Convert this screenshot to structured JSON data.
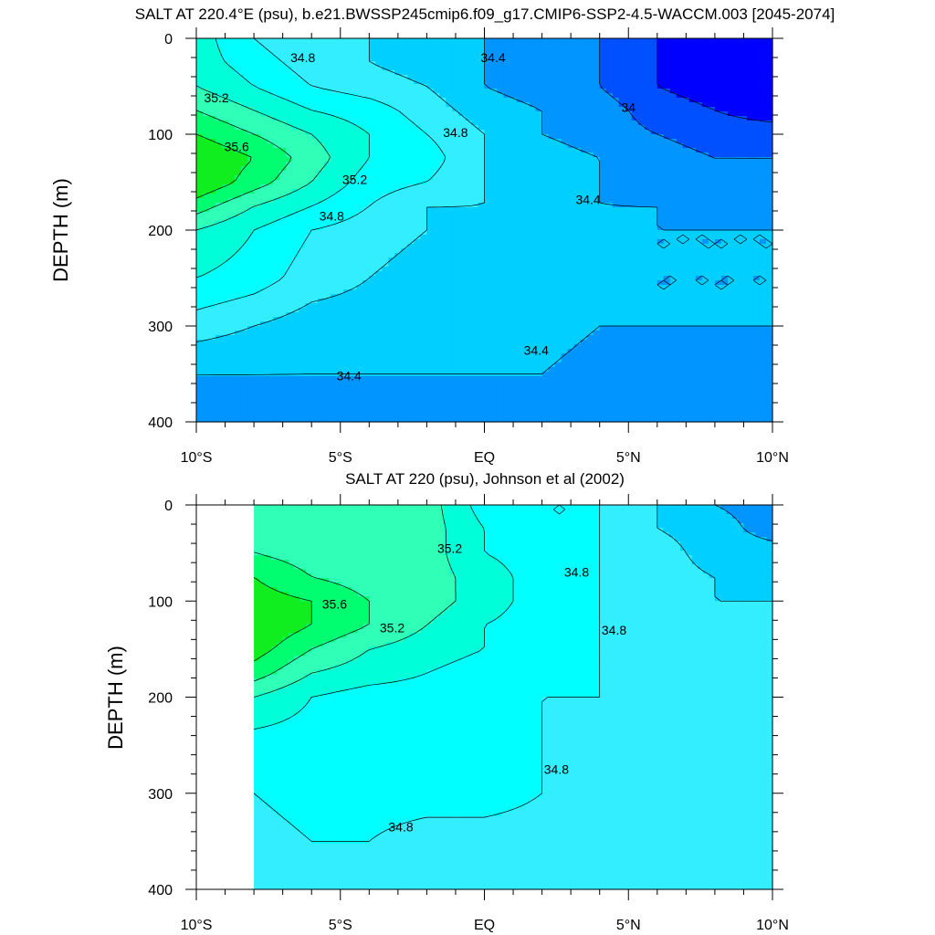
{
  "chart_data": [
    {
      "type": "heatmap",
      "title": "SALT AT 220.4°E (psu), b.e21.BWSSP245cmip6.f09_g17.CMIP6-SSP2-4.5-WACCM.003 [2045-2074]",
      "ylabel": "DEPTH (m)",
      "xlabel": "",
      "xlim": [
        -10,
        10
      ],
      "ylim": [
        400,
        0
      ],
      "x_ticks": [
        -10,
        -5,
        0,
        5,
        10
      ],
      "x_tick_labels": [
        "10°S",
        "5°S",
        "EQ",
        "5°N",
        "10°N"
      ],
      "y_ticks": [
        0,
        100,
        200,
        300,
        400
      ],
      "y_tick_labels": [
        "0",
        "100",
        "200",
        "300",
        "400"
      ],
      "contour_interval": 0.2,
      "contour_labels": [
        {
          "text": "34.8",
          "lat": -6.3,
          "depth": 20
        },
        {
          "text": "34.4",
          "lat": 0.3,
          "depth": 20
        },
        {
          "text": "35.2",
          "lat": -9.3,
          "depth": 62
        },
        {
          "text": "34.8",
          "lat": -1.0,
          "depth": 98
        },
        {
          "text": "34",
          "lat": 5.0,
          "depth": 72
        },
        {
          "text": "35.6",
          "lat": -8.6,
          "depth": 113
        },
        {
          "text": "35.2",
          "lat": -4.5,
          "depth": 147
        },
        {
          "text": "34.8",
          "lat": -5.3,
          "depth": 185
        },
        {
          "text": "34.4",
          "lat": 3.6,
          "depth": 168
        },
        {
          "text": "34.4",
          "lat": 1.8,
          "depth": 325
        },
        {
          "text": "34.4",
          "lat": -4.7,
          "depth": 352
        }
      ],
      "data_extent": {
        "lat": [
          -10,
          10
        ],
        "depth": [
          0,
          400
        ]
      },
      "salinity_field": {
        "lat": [
          -10,
          -8,
          -6,
          -4,
          -2,
          0,
          2,
          4,
          6,
          8,
          10
        ],
        "depth": [
          0,
          25,
          50,
          75,
          100,
          125,
          150,
          175,
          200,
          250,
          300,
          350,
          400
        ],
        "values": [
          [
            35.1,
            34.8,
            34.6,
            34.6,
            34.5,
            34.4,
            34.3,
            34.2,
            34.0,
            33.7,
            33.6
          ],
          [
            35.1,
            34.9,
            34.7,
            34.6,
            34.5,
            34.4,
            34.3,
            34.2,
            34.0,
            33.8,
            33.7
          ],
          [
            35.2,
            35.0,
            34.8,
            34.7,
            34.6,
            34.4,
            34.3,
            34.2,
            34.0,
            33.9,
            33.8
          ],
          [
            35.4,
            35.2,
            35.0,
            34.9,
            34.7,
            34.5,
            34.4,
            34.3,
            34.1,
            34.0,
            33.9
          ],
          [
            35.6,
            35.4,
            35.2,
            35.0,
            34.8,
            34.6,
            34.4,
            34.3,
            34.2,
            34.1,
            34.1
          ],
          [
            35.8,
            35.6,
            35.3,
            35.0,
            34.9,
            34.6,
            34.5,
            34.4,
            34.3,
            34.2,
            34.2
          ],
          [
            35.8,
            35.5,
            35.2,
            34.9,
            34.8,
            34.6,
            34.5,
            34.4,
            34.3,
            34.3,
            34.3
          ],
          [
            35.5,
            35.2,
            35.0,
            34.8,
            34.6,
            34.6,
            34.5,
            34.4,
            34.4,
            34.3,
            34.3
          ],
          [
            35.2,
            35.0,
            34.8,
            34.7,
            34.6,
            34.5,
            34.5,
            34.5,
            34.4,
            34.4,
            34.4
          ],
          [
            35.0,
            34.9,
            34.7,
            34.6,
            34.5,
            34.5,
            34.5,
            34.5,
            34.4,
            34.4,
            34.4
          ],
          [
            34.7,
            34.6,
            34.5,
            34.5,
            34.5,
            34.5,
            34.5,
            34.4,
            34.4,
            34.4,
            34.4
          ],
          [
            34.4,
            34.4,
            34.4,
            34.4,
            34.4,
            34.4,
            34.4,
            34.3,
            34.3,
            34.3,
            34.3
          ],
          [
            34.3,
            34.3,
            34.3,
            34.3,
            34.3,
            34.3,
            34.3,
            34.3,
            34.3,
            34.3,
            34.3
          ]
        ]
      }
    },
    {
      "type": "heatmap",
      "title": "SALT AT 220 (psu), Johnson et al (2002)",
      "ylabel": "DEPTH (m)",
      "xlabel": "",
      "xlim": [
        -10,
        10
      ],
      "ylim": [
        400,
        0
      ],
      "x_ticks": [
        -10,
        -5,
        0,
        5,
        10
      ],
      "x_tick_labels": [
        "10°S",
        "5°S",
        "EQ",
        "5°N",
        "10°N"
      ],
      "y_ticks": [
        0,
        100,
        200,
        300,
        400
      ],
      "y_tick_labels": [
        "0",
        "100",
        "200",
        "300",
        "400"
      ],
      "contour_interval": 0.2,
      "contour_labels": [
        {
          "text": "35.2",
          "lat": -1.2,
          "depth": 45
        },
        {
          "text": "34.8",
          "lat": 3.2,
          "depth": 70
        },
        {
          "text": "35.6",
          "lat": -5.2,
          "depth": 103
        },
        {
          "text": "35.2",
          "lat": -3.2,
          "depth": 128
        },
        {
          "text": "34.8",
          "lat": 4.5,
          "depth": 130
        },
        {
          "text": "34.8",
          "lat": 2.5,
          "depth": 275
        },
        {
          "text": "34.8",
          "lat": -2.9,
          "depth": 335
        }
      ],
      "data_extent": {
        "lat": [
          -8,
          10
        ],
        "depth": [
          0,
          400
        ]
      },
      "salinity_field": {
        "lat": [
          -8,
          -6,
          -4,
          -2,
          0,
          2,
          4,
          6,
          8,
          10
        ],
        "depth": [
          0,
          25,
          50,
          75,
          100,
          125,
          150,
          175,
          200,
          250,
          300,
          350,
          400
        ],
        "values": [
          [
            35.3,
            35.3,
            35.3,
            35.3,
            34.9,
            34.8,
            34.8,
            34.6,
            34.4,
            34.3
          ],
          [
            35.3,
            35.3,
            35.3,
            35.3,
            35.0,
            34.8,
            34.8,
            34.6,
            34.5,
            34.3
          ],
          [
            35.4,
            35.3,
            35.3,
            35.3,
            35.0,
            34.9,
            34.8,
            34.7,
            34.5,
            34.5
          ],
          [
            35.6,
            35.4,
            35.3,
            35.3,
            35.1,
            34.9,
            34.8,
            34.7,
            34.6,
            34.5
          ],
          [
            35.7,
            35.6,
            35.4,
            35.3,
            35.1,
            34.9,
            34.8,
            34.7,
            34.6,
            34.6
          ],
          [
            35.8,
            35.6,
            35.4,
            35.2,
            35.0,
            34.9,
            34.8,
            34.7,
            34.7,
            34.6
          ],
          [
            35.7,
            35.4,
            35.2,
            35.1,
            35.0,
            34.9,
            34.8,
            34.7,
            34.7,
            34.7
          ],
          [
            35.5,
            35.2,
            35.1,
            35.0,
            34.9,
            34.9,
            34.8,
            34.7,
            34.7,
            34.7
          ],
          [
            35.2,
            35.0,
            34.9,
            34.9,
            34.9,
            34.8,
            34.8,
            34.7,
            34.7,
            34.7
          ],
          [
            34.9,
            34.9,
            34.9,
            34.9,
            34.9,
            34.8,
            34.7,
            34.7,
            34.7,
            34.7
          ],
          [
            34.8,
            34.9,
            34.9,
            34.9,
            34.9,
            34.8,
            34.7,
            34.7,
            34.7,
            34.7
          ],
          [
            34.7,
            34.8,
            34.8,
            34.7,
            34.7,
            34.7,
            34.7,
            34.7,
            34.7,
            34.7
          ],
          [
            34.7,
            34.7,
            34.7,
            34.7,
            34.7,
            34.7,
            34.7,
            34.7,
            34.7,
            34.7
          ]
        ]
      }
    }
  ],
  "colormap": {
    "levels": [
      34.0,
      34.2,
      34.4,
      34.6,
      34.8,
      35.0,
      35.2,
      35.4,
      35.6,
      35.8
    ],
    "colors": [
      "#0000ff",
      "#0050ff",
      "#0095ff",
      "#00cfff",
      "#33eeff",
      "#00ffff",
      "#00ffd8",
      "#30ffb8",
      "#00ff70",
      "#10ee20",
      "#90ff00",
      "#ffff00",
      "#ffcc33"
    ]
  }
}
